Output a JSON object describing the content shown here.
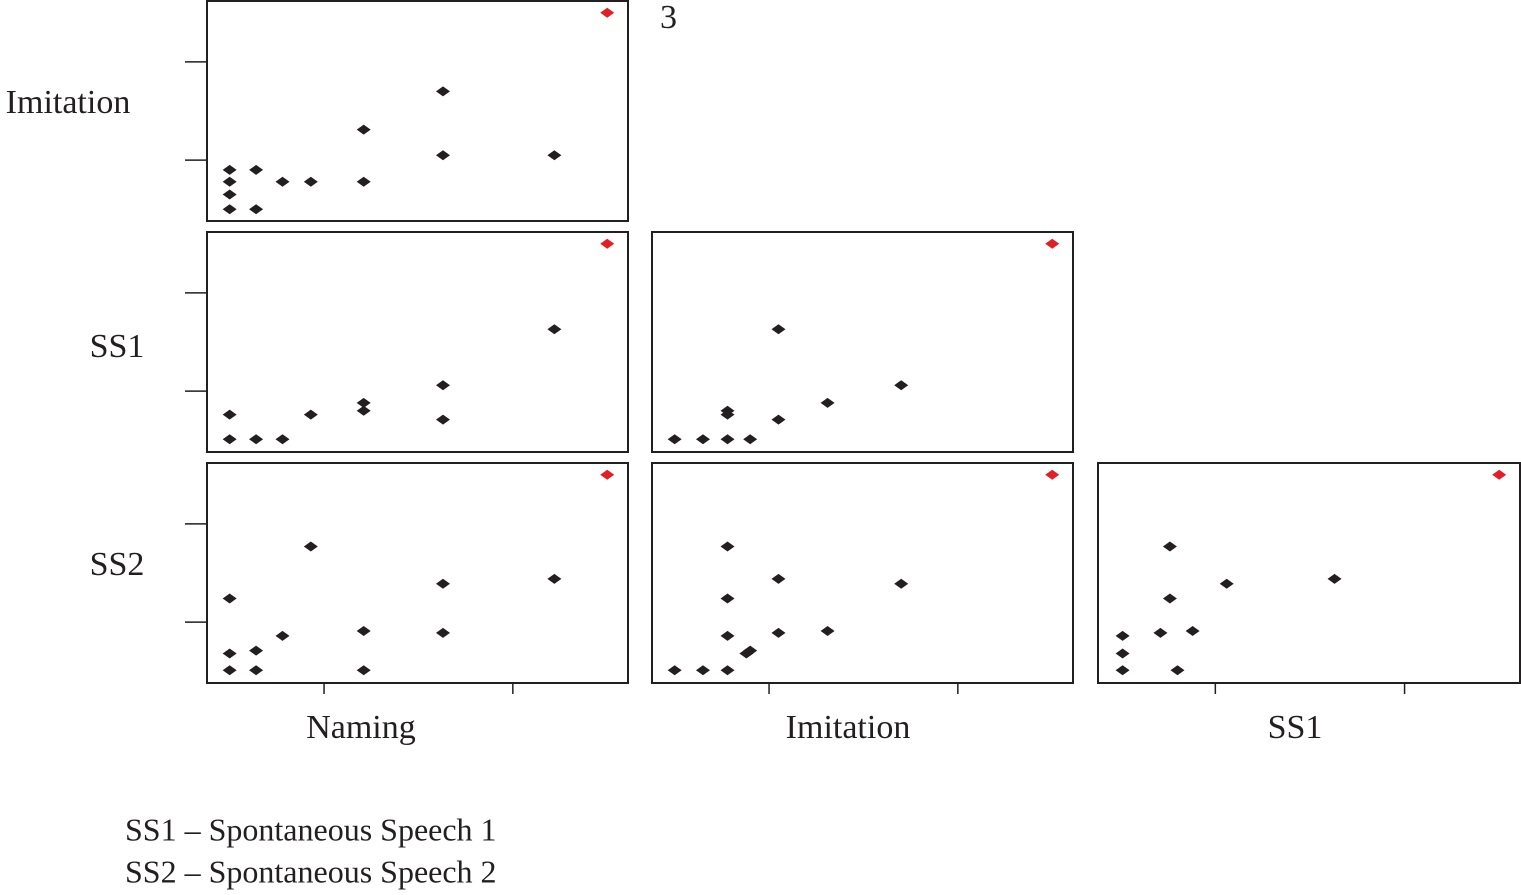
{
  "title": "3",
  "row_labels": [
    "Imitation",
    "SS1",
    "SS2"
  ],
  "column_labels": [
    "Naming",
    "Imitation",
    "SS1"
  ],
  "notes": [
    "SS1 – Spontaneous Speech 1",
    "SS2 – Spontaneous Speech 2"
  ],
  "chart_data": [
    {
      "type": "scatter",
      "xlim": [
        3.8,
        26.1
      ],
      "ylim": [
        3.8,
        26.2
      ],
      "xticks": [
        10,
        20
      ],
      "yticks": [
        10,
        20
      ],
      "series": [
        {
          "color": "#231f20",
          "x": [
            5.0,
            5.0,
            5.0,
            5.0,
            6.4,
            6.4,
            7.8,
            9.3,
            12.1,
            12.1,
            16.3,
            16.3,
            22.2
          ],
          "values": [
            9.0,
            7.8,
            6.5,
            5.0,
            9.0,
            5.0,
            7.8,
            7.8,
            13.1,
            7.8,
            17.0,
            10.5,
            10.5
          ]
        },
        {
          "color": "#e31e24",
          "x": [
            25.0
          ],
          "values": [
            25.0
          ]
        }
      ]
    },
    {
      "type": "scatter",
      "xlim": [
        3.8,
        26.1
      ],
      "ylim": [
        3.8,
        26.2
      ],
      "xticks": [
        10,
        20
      ],
      "yticks": [
        10,
        20
      ],
      "series": [
        {
          "color": "#231f20",
          "x": [
            5.0,
            5.0,
            6.4,
            7.8,
            9.3,
            12.1,
            12.1,
            16.3,
            16.3,
            22.2
          ],
          "values": [
            7.6,
            5.1,
            5.1,
            5.1,
            7.6,
            8.8,
            8.0,
            10.6,
            7.1,
            16.3
          ]
        },
        {
          "color": "#e31e24",
          "x": [
            25.0
          ],
          "values": [
            25.0
          ]
        }
      ]
    },
    {
      "type": "scatter",
      "xlim": [
        3.8,
        26.1
      ],
      "ylim": [
        3.8,
        26.2
      ],
      "xticks": [
        10,
        20
      ],
      "yticks": [
        10,
        20
      ],
      "series": [
        {
          "color": "#231f20",
          "x": [
            5.0,
            6.5,
            7.8,
            9.0,
            7.8,
            7.8,
            10.5,
            10.5,
            13.1,
            17.0
          ],
          "values": [
            5.1,
            5.1,
            5.1,
            5.1,
            8.0,
            7.6,
            7.1,
            16.3,
            8.8,
            10.6
          ]
        },
        {
          "color": "#e31e24",
          "x": [
            25.0
          ],
          "values": [
            25.0
          ]
        }
      ]
    },
    {
      "type": "scatter",
      "xlim": [
        3.8,
        26.1
      ],
      "ylim": [
        3.8,
        26.2
      ],
      "xticks": [
        10,
        20
      ],
      "yticks": [
        10,
        20
      ],
      "series": [
        {
          "color": "#231f20",
          "x": [
            5.0,
            5.0,
            5.0,
            6.4,
            6.4,
            7.8,
            9.3,
            12.1,
            12.1,
            16.3,
            16.3,
            22.2
          ],
          "values": [
            12.4,
            6.8,
            5.1,
            7.1,
            5.1,
            8.6,
            17.7,
            9.1,
            5.1,
            13.9,
            8.9,
            14.4
          ]
        },
        {
          "color": "#e31e24",
          "x": [
            25.0
          ],
          "values": [
            25.0
          ]
        }
      ]
    },
    {
      "type": "scatter",
      "xlim": [
        3.8,
        26.1
      ],
      "ylim": [
        3.8,
        26.2
      ],
      "xticks": [
        10,
        20
      ],
      "yticks": [
        10,
        20
      ],
      "series": [
        {
          "color": "#231f20",
          "x": [
            5.0,
            6.5,
            7.8,
            7.8,
            7.8,
            7.8,
            9.0,
            8.8,
            10.5,
            10.5,
            13.1,
            17.0
          ],
          "values": [
            5.1,
            5.1,
            5.1,
            8.6,
            12.4,
            17.7,
            7.1,
            6.8,
            8.9,
            14.4,
            9.1,
            13.9
          ]
        },
        {
          "color": "#e31e24",
          "x": [
            25.0
          ],
          "values": [
            25.0
          ]
        }
      ]
    },
    {
      "type": "scatter",
      "xlim": [
        3.8,
        26.1
      ],
      "ylim": [
        3.8,
        26.2
      ],
      "xticks": [
        10,
        20
      ],
      "yticks": [
        10,
        20
      ],
      "series": [
        {
          "color": "#231f20",
          "x": [
            5.1,
            5.1,
            5.1,
            7.1,
            7.6,
            7.6,
            8.0,
            8.8,
            10.6,
            16.3
          ],
          "values": [
            5.1,
            6.8,
            8.6,
            8.9,
            17.7,
            12.4,
            5.1,
            9.1,
            13.9,
            14.4
          ]
        },
        {
          "color": "#e31e24",
          "x": [
            25.0
          ],
          "values": [
            25.0
          ]
        }
      ]
    }
  ]
}
